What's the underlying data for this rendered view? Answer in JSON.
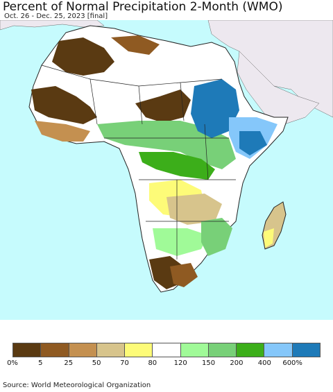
{
  "title": "Percent of Normal Precipitation 2-Month (WMO)",
  "subtitle": "Oct. 26 - Dec. 25, 2023 [final]",
  "source": "Source: World Meteorological Organization",
  "colors": {
    "ocean": "#c6fbfd",
    "other_land": "#ede8ef",
    "border": "#222222"
  },
  "legend": {
    "labels": [
      "0%",
      "5",
      "25",
      "50",
      "70",
      "80",
      "120",
      "150",
      "200",
      "400",
      "600%"
    ],
    "colors": [
      "#5a3a12",
      "#8f5a22",
      "#c49050",
      "#d7c48c",
      "#fdfb78",
      "#ffffff",
      "#a0fa98",
      "#78d078",
      "#3cae1a",
      "#85c7fa",
      "#1e7ab8"
    ]
  }
}
